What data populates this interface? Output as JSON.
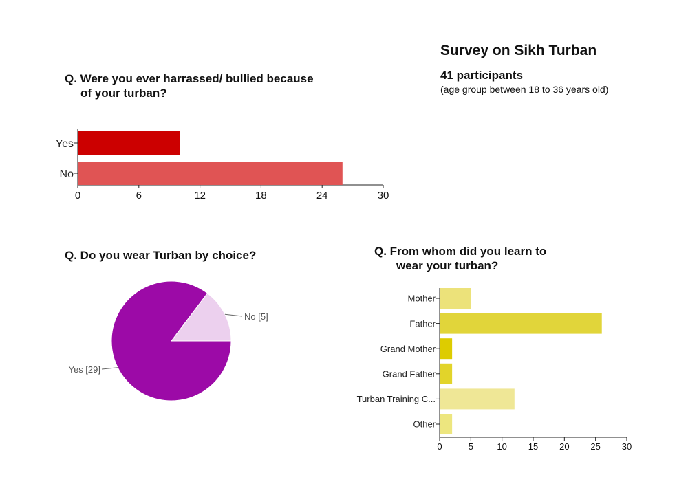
{
  "header": {
    "title": "Survey on Sikh Turban",
    "participants": "41 participants",
    "age_group": "(age group between 18 to 36 years old)"
  },
  "questions": {
    "q1_line1": "Q. Were you ever harrassed/ bullied because",
    "q1_line2": "of your turban?",
    "q2": "Q. Do you wear Turban by choice?",
    "q3_line1": "Q.  From whom did you learn to",
    "q3_line2": "wear your  turban?"
  },
  "chart_data": [
    {
      "type": "bar",
      "orientation": "horizontal",
      "categories": [
        "Yes",
        "No"
      ],
      "values": [
        10,
        26
      ],
      "colors": [
        "#cc0000",
        "#e05454"
      ],
      "xlim": [
        0,
        30
      ],
      "xticks": [
        0,
        6,
        12,
        18,
        24,
        30
      ],
      "grid": false
    },
    {
      "type": "pie",
      "labels": [
        "No [5]",
        "Yes [29]"
      ],
      "values": [
        5,
        29
      ],
      "colors": [
        "#ecd0ee",
        "#9c0aa7"
      ]
    },
    {
      "type": "bar",
      "orientation": "horizontal",
      "categories": [
        "Mother",
        "Father",
        "Grand Mother",
        "Grand Father",
        "Turban Training C...",
        "Other"
      ],
      "values": [
        5,
        26,
        2,
        2,
        12,
        2
      ],
      "colors": [
        "#ece27a",
        "#e1d53a",
        "#ddcc00",
        "#e2d42a",
        "#efe796",
        "#ede67f"
      ],
      "xlim": [
        0,
        30
      ],
      "xticks": [
        0,
        5,
        10,
        15,
        20,
        25,
        30
      ],
      "grid": false
    }
  ]
}
